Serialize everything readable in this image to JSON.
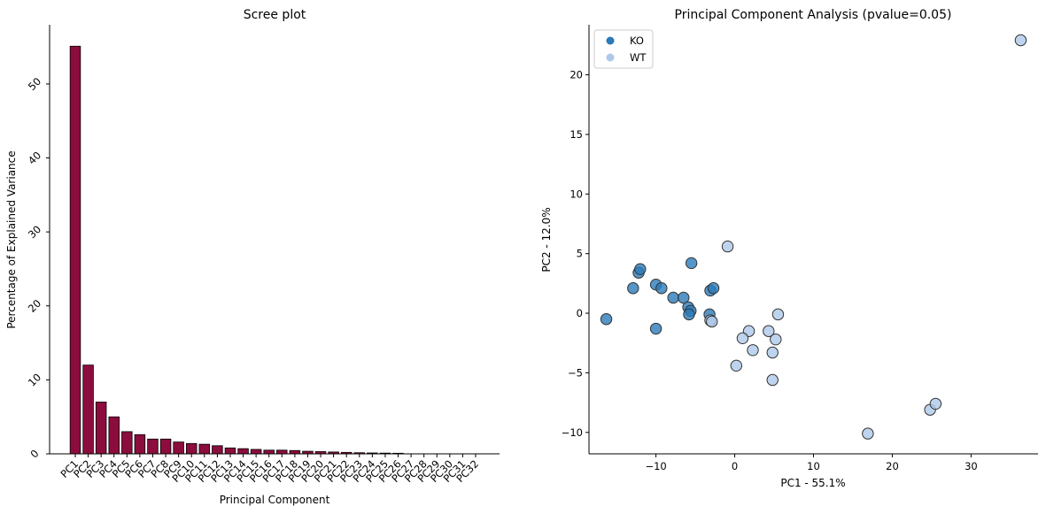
{
  "chart_data": [
    {
      "type": "bar",
      "title": "Scree plot",
      "xlabel": "Principal Component",
      "ylabel": "Percentage of Explained Variance",
      "categories": [
        "PC1",
        "PC2",
        "PC3",
        "PC4",
        "PC5",
        "PC6",
        "PC7",
        "PC8",
        "PC9",
        "PC10",
        "PC11",
        "PC12",
        "PC13",
        "PC14",
        "PC15",
        "PC16",
        "PC17",
        "PC18",
        "PC19",
        "PC20",
        "PC21",
        "PC22",
        "PC23",
        "PC24",
        "PC25",
        "PC26",
        "PC27",
        "PC28",
        "PC29",
        "PC30",
        "PC31",
        "PC32"
      ],
      "values": [
        55.1,
        12.0,
        7.0,
        5.0,
        3.0,
        2.6,
        2.0,
        2.0,
        1.6,
        1.4,
        1.3,
        1.1,
        0.8,
        0.7,
        0.6,
        0.5,
        0.5,
        0.45,
        0.35,
        0.3,
        0.25,
        0.2,
        0.15,
        0.12,
        0.1,
        0.08,
        0.0,
        0.0,
        0.0,
        0.0,
        0.0,
        0.0
      ],
      "ylim": [
        0,
        58
      ],
      "yticks": [
        0,
        10,
        20,
        30,
        40,
        50
      ],
      "bar_color": "#8c0d3d",
      "grid": false
    },
    {
      "type": "scatter",
      "title": "Principal Component Analysis (pvalue=0.05)",
      "xlabel": "PC1 - 55.1%",
      "ylabel": "PC2 - 12.0%",
      "xlim": [
        -18.5,
        38.5
      ],
      "ylim": [
        -11.8,
        24.2
      ],
      "xticks": [
        -10,
        0,
        10,
        20,
        30
      ],
      "yticks": [
        -10,
        -5,
        0,
        5,
        10,
        15,
        20
      ],
      "legend_position": "top-left",
      "grid": false,
      "series": [
        {
          "name": "KO",
          "color": "#2a7ab9",
          "points": [
            [
              -16.3,
              -0.5
            ],
            [
              -12.2,
              3.4
            ],
            [
              -12.0,
              3.7
            ],
            [
              -12.9,
              2.1
            ],
            [
              -10.0,
              2.4
            ],
            [
              -9.3,
              2.1
            ],
            [
              -10.0,
              -1.3
            ],
            [
              -7.8,
              1.3
            ],
            [
              -6.5,
              1.3
            ],
            [
              -5.9,
              0.5
            ],
            [
              -5.6,
              0.2
            ],
            [
              -5.8,
              -0.1
            ],
            [
              -5.5,
              4.2
            ],
            [
              -3.1,
              1.9
            ],
            [
              -2.7,
              2.1
            ],
            [
              -3.2,
              -0.1
            ]
          ]
        },
        {
          "name": "WT",
          "color": "#aec8e8",
          "points": [
            [
              36.3,
              22.9
            ],
            [
              -0.9,
              5.6
            ],
            [
              -3.1,
              -0.6
            ],
            [
              -2.9,
              -0.7
            ],
            [
              5.5,
              -0.1
            ],
            [
              1.8,
              -1.5
            ],
            [
              1.0,
              -2.1
            ],
            [
              4.3,
              -1.5
            ],
            [
              5.2,
              -2.2
            ],
            [
              2.3,
              -3.1
            ],
            [
              4.8,
              -3.3
            ],
            [
              0.2,
              -4.4
            ],
            [
              4.8,
              -5.6
            ],
            [
              16.9,
              -10.1
            ],
            [
              24.8,
              -8.1
            ],
            [
              25.5,
              -7.6
            ]
          ]
        }
      ]
    }
  ]
}
